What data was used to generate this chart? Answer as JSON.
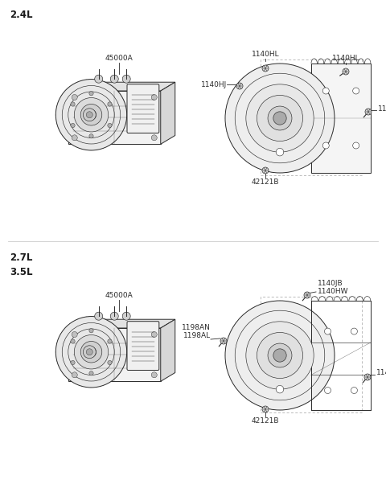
{
  "bg_color": "#ffffff",
  "line_color": "#2a2a2a",
  "label_color": "#1a1a1a",
  "section1_label": "2.4L",
  "section2_label": "2.7L",
  "section3_label": "3.5L",
  "fs_label": 6.5,
  "fs_section": 8.5,
  "lw_main": 0.7,
  "lw_detail": 0.45,
  "lw_thin": 0.3
}
